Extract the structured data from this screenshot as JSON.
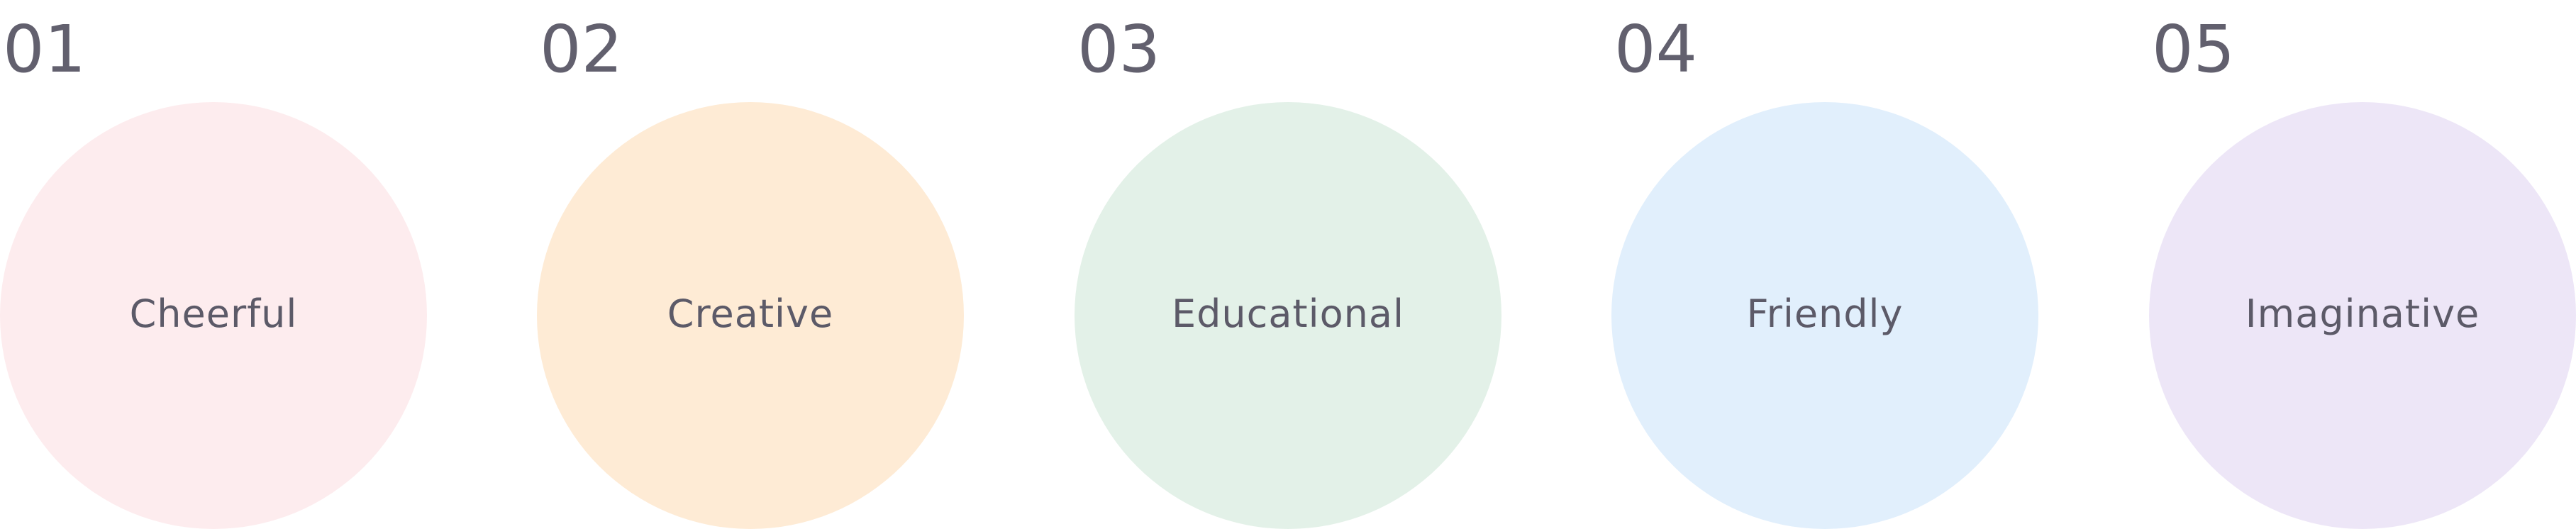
{
  "traits": [
    {
      "number": "01",
      "label": "Cheerful",
      "color": "#fdecee"
    },
    {
      "number": "02",
      "label": "Creative",
      "color": "#feebd5"
    },
    {
      "number": "03",
      "label": "Educational",
      "color": "#e3f1e8"
    },
    {
      "number": "04",
      "label": "Friendly",
      "color": "#e1effc"
    },
    {
      "number": "05",
      "label": "Imaginative",
      "color": "#ede6f7"
    }
  ]
}
